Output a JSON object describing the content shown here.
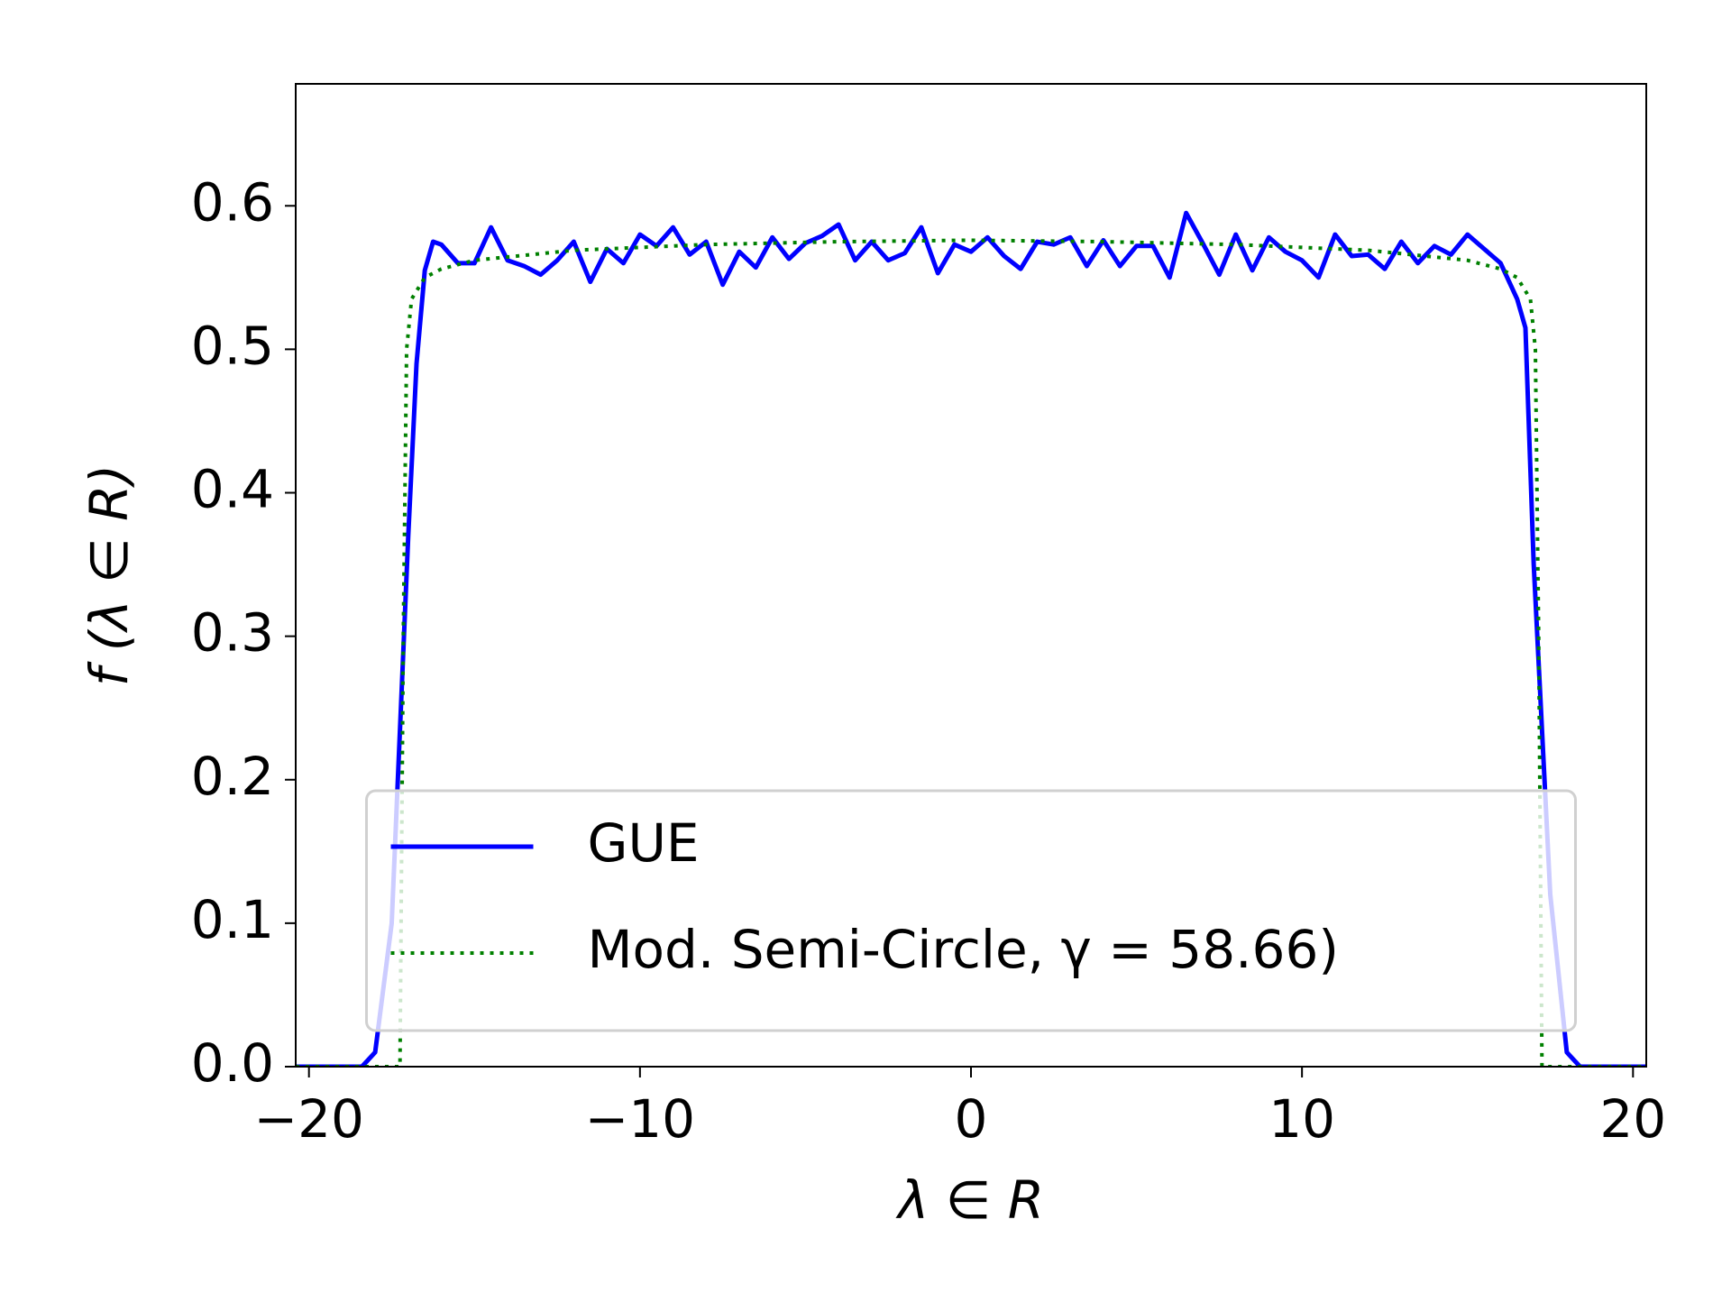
{
  "chart_data": {
    "type": "line",
    "xlabel": "λ ∈ R",
    "ylabel": "f  (λ ∈ R)",
    "xlim": [
      -20.4,
      20.4
    ],
    "ylim": [
      0,
      0.685
    ],
    "xticks": [
      {
        "value": -20,
        "label": "−20"
      },
      {
        "value": -10,
        "label": "−10"
      },
      0,
      10,
      20
    ],
    "yticks": [
      {
        "value": 0,
        "label": "0.0"
      },
      0.1,
      0.2,
      0.3,
      0.4,
      0.5,
      0.6
    ],
    "legend": "lower center",
    "series": [
      {
        "name": "GUE",
        "color": "#0000ff",
        "linestyle": "solid",
        "x": [
          -20.4,
          -18.4,
          -18,
          -17.5,
          -17,
          -16.75,
          -16.5,
          -16.25,
          -16,
          -15.5,
          -15,
          -14.5,
          -14,
          -13.5,
          -13,
          -12.5,
          -12,
          -11.5,
          -11,
          -10.5,
          -10,
          -9.5,
          -9,
          -8.5,
          -8,
          -7.5,
          -7,
          -6.5,
          -6,
          -5.5,
          -5,
          -4.5,
          -4,
          -3.5,
          -3,
          -2.5,
          -2,
          -1.5,
          -1,
          -0.5,
          0,
          0.5,
          1,
          1.5,
          2,
          2.5,
          3,
          3.5,
          4,
          4.5,
          5,
          5.5,
          6,
          6.5,
          7,
          7.5,
          8,
          8.5,
          9,
          9.5,
          10,
          10.5,
          11,
          11.5,
          12,
          12.5,
          13,
          13.5,
          14,
          14.5,
          15,
          15.5,
          16,
          16.5,
          16.75,
          17,
          17.5,
          18,
          18.4,
          20.4
        ],
        "values": [
          0,
          0,
          0.01,
          0.1,
          0.37,
          0.49,
          0.555,
          0.575,
          0.573,
          0.56,
          0.56,
          0.585,
          0.562,
          0.558,
          0.552,
          0.562,
          0.575,
          0.547,
          0.57,
          0.56,
          0.58,
          0.572,
          0.585,
          0.566,
          0.575,
          0.545,
          0.568,
          0.557,
          0.578,
          0.563,
          0.574,
          0.579,
          0.587,
          0.562,
          0.575,
          0.562,
          0.567,
          0.585,
          0.553,
          0.573,
          0.568,
          0.578,
          0.565,
          0.556,
          0.575,
          0.573,
          0.578,
          0.558,
          0.576,
          0.558,
          0.572,
          0.572,
          0.55,
          0.595,
          0.574,
          0.552,
          0.58,
          0.555,
          0.578,
          0.568,
          0.562,
          0.55,
          0.58,
          0.565,
          0.566,
          0.556,
          0.575,
          0.56,
          0.572,
          0.566,
          0.58,
          0.57,
          0.56,
          0.535,
          0.515,
          0.35,
          0.12,
          0.01,
          0,
          0
        ]
      },
      {
        "name": "Mod. Semi-Circle, γ = 58.66)",
        "color": "#008000",
        "linestyle": "dotted",
        "x": [
          -20.4,
          -17.25,
          -17.15,
          -17.05,
          -16.9,
          -16.5,
          -16,
          -15,
          -12,
          -8,
          -4,
          0,
          4,
          8,
          12,
          15,
          16,
          16.5,
          16.9,
          17.05,
          17.15,
          17.25,
          20.4
        ],
        "values": [
          0,
          0,
          0.3,
          0.5,
          0.535,
          0.55,
          0.556,
          0.562,
          0.569,
          0.573,
          0.575,
          0.576,
          0.575,
          0.573,
          0.569,
          0.562,
          0.556,
          0.55,
          0.535,
          0.5,
          0.3,
          0,
          0
        ]
      }
    ]
  }
}
